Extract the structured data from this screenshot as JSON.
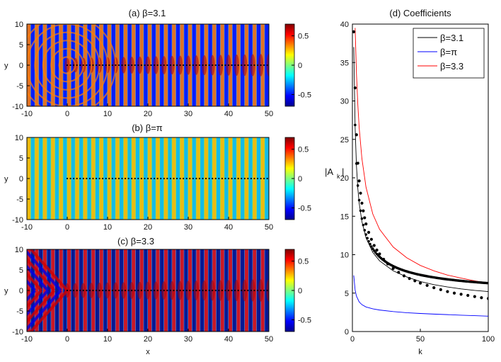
{
  "chart_data": [
    {
      "type": "heatmap",
      "title": "(a) β=3.1",
      "xlabel": "",
      "ylabel": "y",
      "xlim": [
        -10,
        50
      ],
      "ylim": [
        -10,
        10
      ],
      "xticks": [
        "-10",
        "0",
        "10",
        "20",
        "30",
        "40",
        "50"
      ],
      "yticks": [
        "10",
        "5",
        "0",
        "-5",
        "-10"
      ],
      "colorbar": {
        "ticks": [
          "0.5",
          "0",
          "-0.5"
        ],
        "range": [
          -0.7,
          0.7
        ]
      },
      "beta": 3.1
    },
    {
      "type": "heatmap",
      "title": "(b) β=π",
      "xlabel": "",
      "ylabel": "y",
      "xlim": [
        -10,
        50
      ],
      "ylim": [
        -10,
        10
      ],
      "xticks": [
        "-10",
        "0",
        "10",
        "20",
        "30",
        "40",
        "50"
      ],
      "yticks": [
        "10",
        "5",
        "0",
        "-5",
        "-10"
      ],
      "colorbar": {
        "ticks": [
          "0.5",
          "0",
          "-0.5"
        ],
        "range": [
          -0.7,
          0.7
        ]
      },
      "beta": 3.14159
    },
    {
      "type": "heatmap",
      "title": "(c) β=3.3",
      "xlabel": "x",
      "ylabel": "y",
      "xlim": [
        -10,
        50
      ],
      "ylim": [
        -10,
        10
      ],
      "xticks": [
        "-10",
        "0",
        "10",
        "20",
        "30",
        "40",
        "50"
      ],
      "yticks": [
        "10",
        "5",
        "0",
        "-5",
        "-10"
      ],
      "colorbar": {
        "ticks": [
          "0.5",
          "0",
          "-0.5"
        ],
        "range": [
          -0.7,
          0.7
        ]
      },
      "beta": 3.3
    },
    {
      "type": "line",
      "title": "(d) Coefficients",
      "xlabel": "k",
      "ylabel": "|A_k|",
      "ylabel_main": "|A",
      "ylabel_sub": "k",
      "ylabel_end": "|",
      "xlim": [
        0,
        100
      ],
      "ylim": [
        0,
        40
      ],
      "xticks": [
        "0",
        "50",
        "100"
      ],
      "yticks": [
        "40",
        "35",
        "30",
        "25",
        "20",
        "15",
        "10",
        "5",
        "0"
      ],
      "legend_position": "top-right",
      "series": [
        {
          "name": "β=3.1",
          "color": "#000000",
          "x": [
            1,
            2,
            3,
            4,
            5,
            7,
            10,
            15,
            20,
            30,
            40,
            50,
            60,
            70,
            80,
            90,
            100
          ],
          "y": [
            37.0,
            26.5,
            21.5,
            18.6,
            16.7,
            14.3,
            12.2,
            10.3,
            9.2,
            7.9,
            7.1,
            6.5,
            6.1,
            5.8,
            5.55,
            5.35,
            5.2
          ]
        },
        {
          "name": "β=π",
          "color": "#0000ff",
          "x": [
            1,
            2,
            3,
            5,
            7,
            10,
            15,
            20,
            30,
            40,
            50,
            60,
            70,
            80,
            90,
            100
          ],
          "y": [
            7.3,
            5.4,
            4.6,
            3.85,
            3.5,
            3.2,
            2.95,
            2.8,
            2.6,
            2.45,
            2.35,
            2.27,
            2.2,
            2.13,
            2.07,
            2.0
          ]
        },
        {
          "name": "β=3.3",
          "color": "#ff0000",
          "x": [
            2,
            3,
            4,
            5,
            7,
            10,
            15,
            20,
            30,
            40,
            50,
            60,
            70,
            80,
            90,
            100
          ],
          "y": [
            39.5,
            33.5,
            29.5,
            26.5,
            22.5,
            18.8,
            15.3,
            13.3,
            11.0,
            9.6,
            8.6,
            7.9,
            7.35,
            6.95,
            6.6,
            6.3
          ]
        }
      ],
      "scatter": {
        "name": "β=3.1 points",
        "color": "#000000",
        "x": [
          1,
          2,
          3,
          4,
          5,
          6,
          7,
          8,
          9,
          10,
          12,
          14,
          16,
          18,
          20,
          23,
          26,
          30,
          34,
          38,
          42,
          46,
          50,
          55,
          60,
          65,
          70,
          75,
          80,
          85,
          90,
          95,
          100
        ],
        "y": [
          39.0,
          31.7,
          25.6,
          21.9,
          19.6,
          18.0,
          16.7,
          15.7,
          14.8,
          14.0,
          12.9,
          12.0,
          11.2,
          10.6,
          10.1,
          9.4,
          8.8,
          8.2,
          7.7,
          7.25,
          6.9,
          6.6,
          6.3,
          6.0,
          5.7,
          5.45,
          5.2,
          5.0,
          4.85,
          4.7,
          4.55,
          4.4,
          4.3
        ]
      }
    }
  ]
}
